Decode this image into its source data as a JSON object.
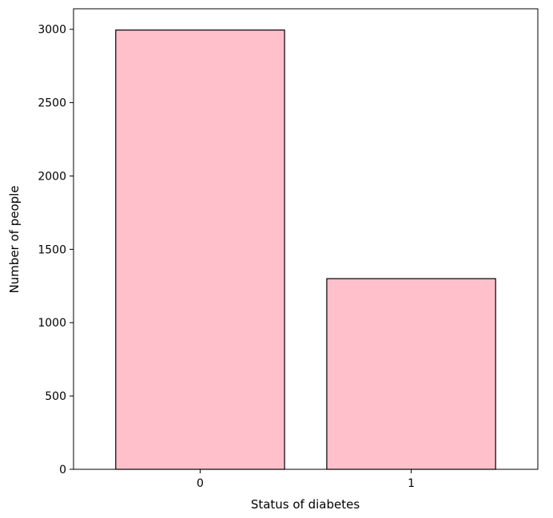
{
  "chart_data": {
    "type": "bar",
    "categories": [
      "0",
      "1"
    ],
    "values": [
      2995,
      1300
    ],
    "xlabel": "Status of diabetes",
    "ylabel": "Number of people",
    "ylim": [
      0,
      3140
    ],
    "yticks": [
      0,
      500,
      1000,
      1500,
      2000,
      2500,
      3000
    ],
    "bar_color": "#ffc0cb",
    "bar_edge_color": "#000000",
    "grid": false,
    "legend": "none"
  }
}
